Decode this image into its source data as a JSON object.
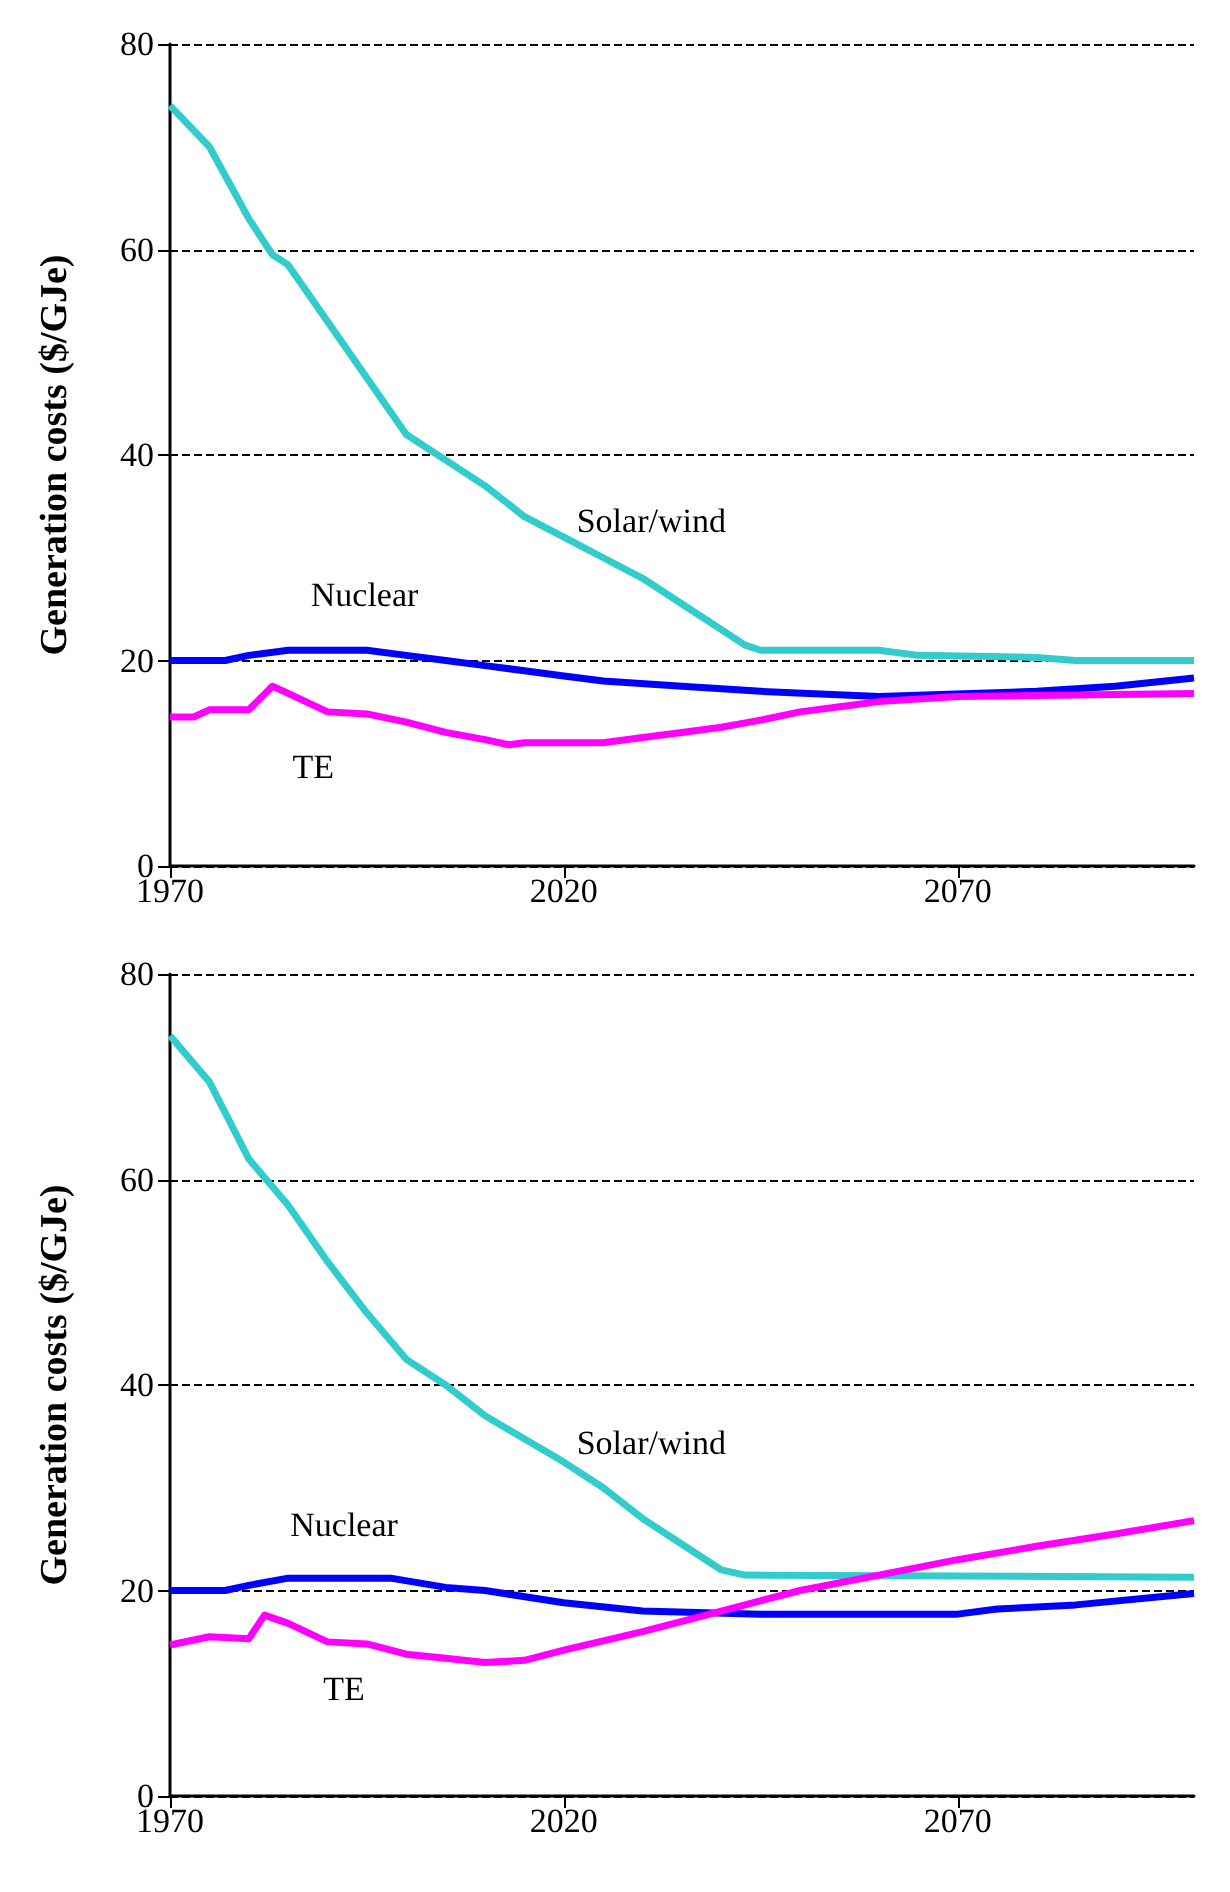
{
  "chart_data": [
    {
      "type": "line",
      "ylabel": "Generation costs ($/GJe)",
      "xlim": [
        1970,
        2100
      ],
      "xticks": [
        1970,
        2020,
        2070
      ],
      "ylim": [
        0,
        80
      ],
      "yticks": [
        0,
        20,
        40,
        60,
        80
      ],
      "grid": "y",
      "legend": false,
      "marker": "none",
      "line_style": "solid",
      "series": [
        {
          "name": "Solar/wind",
          "color": "#33cccc",
          "x": [
            1970,
            1975,
            1980,
            1983,
            1985,
            1990,
            1995,
            2000,
            2005,
            2010,
            2015,
            2020,
            2025,
            2030,
            2035,
            2040,
            2043,
            2045,
            2060,
            2065,
            2080,
            2085,
            2100
          ],
          "values": [
            74,
            70,
            63,
            59.5,
            58.5,
            53,
            47.5,
            42,
            39.5,
            37,
            34,
            32,
            30,
            28,
            25.5,
            23,
            21.5,
            21,
            21,
            20.5,
            20.3,
            20,
            20
          ]
        },
        {
          "name": "Nuclear",
          "color": "#0000ff",
          "x": [
            1970,
            1977,
            1980,
            1985,
            1995,
            2000,
            2005,
            2010,
            2015,
            2020,
            2025,
            2035,
            2045,
            2060,
            2080,
            2090,
            2100
          ],
          "values": [
            20,
            20,
            20.5,
            21,
            21,
            20.5,
            20,
            19.5,
            19,
            18.5,
            18,
            17.5,
            17,
            16.5,
            17,
            17.5,
            18.3
          ]
        },
        {
          "name": "TE",
          "color": "#ff00ff",
          "x": [
            1970,
            1973,
            1975,
            1980,
            1983,
            1985,
            1990,
            1995,
            2000,
            2005,
            2010,
            2013,
            2015,
            2025,
            2030,
            2035,
            2040,
            2045,
            2050,
            2055,
            2060,
            2070,
            2100
          ],
          "values": [
            14.5,
            14.5,
            15.2,
            15.2,
            17.5,
            16.8,
            15,
            14.8,
            14,
            13,
            12.3,
            11.8,
            12,
            12,
            12.5,
            13,
            13.5,
            14.2,
            15,
            15.5,
            16,
            16.5,
            16.8
          ]
        }
      ]
    },
    {
      "type": "line",
      "ylabel": "Generation costs ($/GJe)",
      "xlim": [
        1970,
        2100
      ],
      "xticks": [
        1970,
        2020,
        2070
      ],
      "ylim": [
        0,
        80
      ],
      "yticks": [
        0,
        20,
        40,
        60,
        80
      ],
      "grid": "y",
      "legend": false,
      "marker": "none",
      "line_style": "solid",
      "series": [
        {
          "name": "Solar/wind",
          "color": "#33cccc",
          "x": [
            1970,
            1975,
            1980,
            1985,
            1990,
            1995,
            2000,
            2005,
            2010,
            2020,
            2025,
            2030,
            2035,
            2040,
            2043,
            2100
          ],
          "values": [
            74,
            69.5,
            62,
            57.5,
            52,
            47,
            42.5,
            40,
            37,
            32.5,
            30,
            27,
            24.5,
            22,
            21.5,
            21.3
          ]
        },
        {
          "name": "Nuclear",
          "color": "#0000ff",
          "x": [
            1970,
            1977,
            1980,
            1985,
            1998,
            2005,
            2010,
            2020,
            2030,
            2045,
            2070,
            2075,
            2085,
            2100
          ],
          "values": [
            20,
            20,
            20.5,
            21.2,
            21.2,
            20.3,
            20,
            18.8,
            18,
            17.7,
            17.7,
            18.2,
            18.6,
            19.7
          ]
        },
        {
          "name": "TE",
          "color": "#ff00ff",
          "x": [
            1970,
            1975,
            1980,
            1982,
            1985,
            1990,
            1995,
            2000,
            2005,
            2010,
            2015,
            2020,
            2030,
            2040,
            2050,
            2060,
            2070,
            2080,
            2090,
            2100
          ],
          "values": [
            14.7,
            15.5,
            15.3,
            17.6,
            16.8,
            15,
            14.8,
            13.8,
            13.4,
            13,
            13.2,
            14.2,
            16,
            18,
            20,
            21.5,
            23,
            24.3,
            25.5,
            26.8
          ]
        }
      ]
    }
  ]
}
